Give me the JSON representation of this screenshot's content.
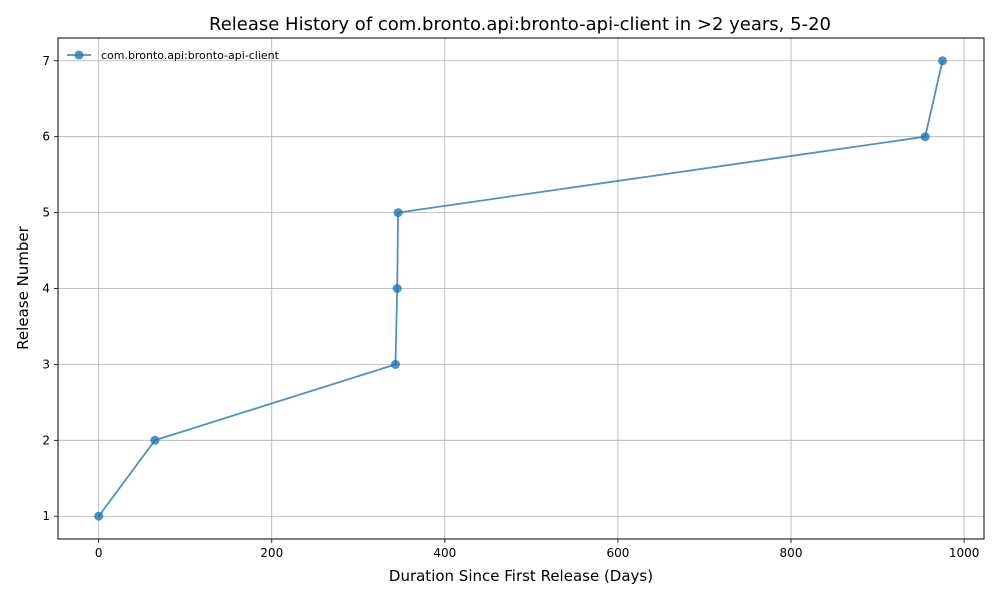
{
  "chart_data": {
    "type": "line",
    "title": "Release History of com.bronto.api:bronto-api-client in >2 years, 5-20",
    "xlabel": "Duration Since First Release (Days)",
    "ylabel": "Release Number",
    "xlim": [
      -47,
      1023
    ],
    "ylim": [
      0.7,
      7.3
    ],
    "xticks": [
      0,
      200,
      400,
      600,
      800,
      1000
    ],
    "yticks": [
      1,
      2,
      3,
      4,
      5,
      6,
      7
    ],
    "grid": true,
    "legend_position": "top-left",
    "series": [
      {
        "name": "com.bronto.api:bronto-api-client",
        "color": "#1f77b4",
        "marker": "circle",
        "x": [
          0,
          65,
          343,
          345,
          346,
          955,
          975
        ],
        "y": [
          1,
          2,
          3,
          4,
          5,
          6,
          7
        ]
      }
    ]
  }
}
